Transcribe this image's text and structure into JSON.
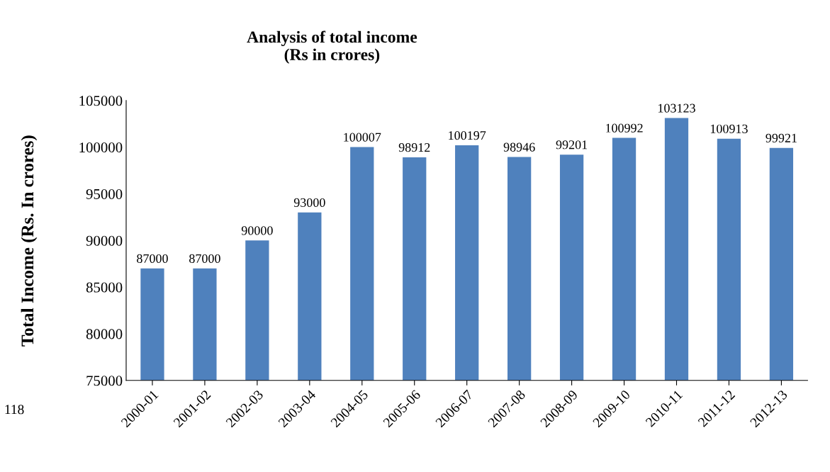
{
  "chart_data": {
    "type": "bar",
    "title": "Analysis of total income\n(Rs in crores)",
    "ylabel": "Total Income (Rs. In crores)",
    "categories": [
      "2000-01",
      "2001-02",
      "2002-03",
      "2003-04",
      "2004-05",
      "2005-06",
      "2006-07",
      "2007-08",
      "2008-09",
      "2009-10",
      "2010-11",
      "2011-12",
      "2012-13"
    ],
    "values": [
      87000,
      87000,
      90000,
      93000,
      100007,
      98912,
      100197,
      98946,
      99201,
      100992,
      103123,
      100913,
      99921
    ],
    "color": "#4f81bd",
    "ylim": [
      75000,
      105000
    ],
    "yticks": [
      75000,
      80000,
      85000,
      90000,
      95000,
      100000,
      105000
    ],
    "grid": false,
    "data_labels": true,
    "annotations": [
      "118"
    ]
  }
}
